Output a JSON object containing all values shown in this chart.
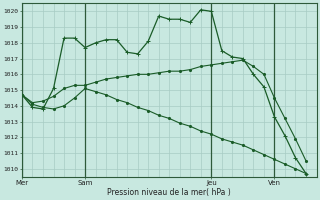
{
  "bg_color": "#c8e8e0",
  "grid_color": "#a8ccc4",
  "line_color": "#1a5c28",
  "ylabel_major": [
    1010,
    1011,
    1012,
    1013,
    1014,
    1015,
    1016,
    1017,
    1018,
    1019,
    1020
  ],
  "x_tick_labels": [
    "Mer",
    "Sam",
    "Jeu",
    "Ven"
  ],
  "x_ticks_pos": [
    0,
    6,
    18,
    24
  ],
  "x_vlines": [
    0,
    6,
    18,
    24
  ],
  "xlabel": "Pression niveau de la mer( hPa )",
  "ylim": [
    1009.5,
    1020.5
  ],
  "xlim": [
    0,
    28
  ],
  "line1_x": [
    0,
    1,
    2,
    3,
    4,
    5,
    6,
    7,
    8,
    9,
    10,
    11,
    12,
    13,
    14,
    15,
    16,
    17,
    18,
    19,
    20,
    21,
    22,
    23,
    24,
    25,
    26,
    27
  ],
  "line1_y": [
    1014.7,
    1013.9,
    1013.8,
    1015.1,
    1018.3,
    1018.3,
    1017.7,
    1018.0,
    1018.2,
    1018.2,
    1017.4,
    1017.3,
    1018.1,
    1019.7,
    1019.5,
    1019.5,
    1019.3,
    1020.1,
    1020.0,
    1017.5,
    1017.1,
    1017.0,
    1016.0,
    1015.2,
    1013.3,
    1012.1,
    1010.7,
    1009.7
  ],
  "line2_x": [
    0,
    1,
    2,
    3,
    4,
    5,
    6,
    7,
    8,
    9,
    10,
    11,
    12,
    13,
    14,
    15,
    16,
    17,
    18,
    19,
    20,
    21,
    22,
    23,
    24,
    25,
    26,
    27
  ],
  "line2_y": [
    1014.7,
    1014.2,
    1014.3,
    1014.6,
    1015.1,
    1015.3,
    1015.3,
    1015.5,
    1015.7,
    1015.8,
    1015.9,
    1016.0,
    1016.0,
    1016.1,
    1016.2,
    1016.2,
    1016.3,
    1016.5,
    1016.6,
    1016.7,
    1016.8,
    1016.9,
    1016.5,
    1016.0,
    1014.5,
    1013.2,
    1011.9,
    1010.5
  ],
  "line3_x": [
    0,
    1,
    2,
    3,
    4,
    5,
    6,
    7,
    8,
    9,
    10,
    11,
    12,
    13,
    14,
    15,
    16,
    17,
    18,
    19,
    20,
    21,
    22,
    23,
    24,
    25,
    26,
    27
  ],
  "line3_y": [
    1014.7,
    1014.1,
    1013.9,
    1013.8,
    1014.0,
    1014.5,
    1015.1,
    1014.9,
    1014.7,
    1014.4,
    1014.2,
    1013.9,
    1013.7,
    1013.4,
    1013.2,
    1012.9,
    1012.7,
    1012.4,
    1012.2,
    1011.9,
    1011.7,
    1011.5,
    1011.2,
    1010.9,
    1010.6,
    1010.3,
    1010.0,
    1009.7
  ]
}
